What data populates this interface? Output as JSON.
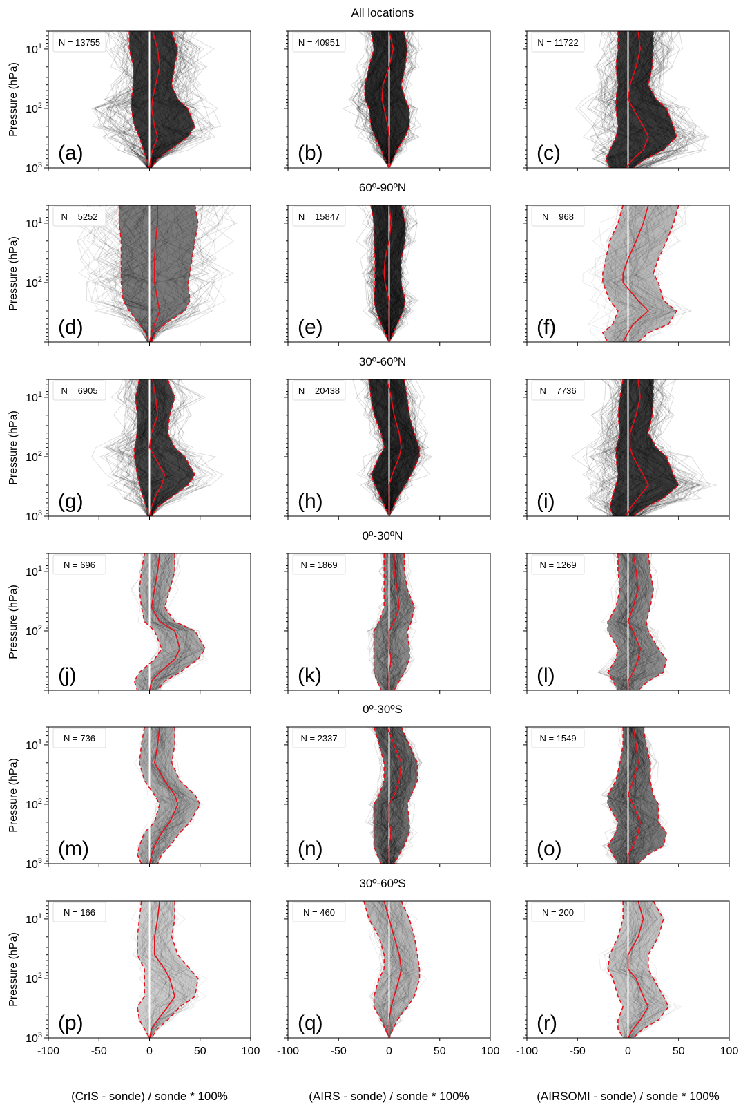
{
  "figure": {
    "ylabel": "Pressure (hPa)",
    "xlabels": [
      "(CrIS - sonde) / sonde * 100%",
      "(AIRS - sonde) / sonde * 100%",
      "(AIRSOMI - sonde) / sonde * 100%"
    ],
    "x_ticks": [
      -100,
      -50,
      0,
      50,
      100
    ],
    "y_tick_labels": [
      {
        "base": "10",
        "exp": "1",
        "value": 10
      },
      {
        "base": "10",
        "exp": "2",
        "value": 100
      },
      {
        "base": "10",
        "exp": "3",
        "value": 1000
      }
    ],
    "row_titles": [
      "All locations",
      "60º-90ºN",
      "30º-60ºN",
      "0º-30ºN",
      "0º-30ºS",
      "30º-60ºS"
    ],
    "colors": {
      "profiles": "#000000",
      "median": "#e8101a",
      "zero_line": "#ffffff",
      "frame": "#000000"
    }
  },
  "chart_data": [
    {
      "type": "line",
      "panel": "a",
      "n_label": "N = 13755",
      "xlim": [
        -100,
        100
      ],
      "ylim": [
        1000,
        5
      ],
      "yscale": "log",
      "density": 0.95,
      "spread": "wide",
      "p": [
        5,
        10,
        20,
        40,
        70,
        100,
        200,
        300,
        500,
        700,
        1000
      ],
      "median": [
        3,
        8,
        10,
        6,
        3,
        2,
        5,
        8,
        3,
        1,
        0
      ],
      "lower": [
        -20,
        -20,
        -16,
        -16,
        -18,
        -18,
        -15,
        -10,
        -6,
        -3,
        0
      ],
      "upper": [
        22,
        28,
        25,
        22,
        28,
        38,
        45,
        38,
        20,
        8,
        2
      ]
    },
    {
      "type": "line",
      "panel": "b",
      "n_label": "N = 40951",
      "xlim": [
        -100,
        100
      ],
      "ylim": [
        1000,
        5
      ],
      "yscale": "log",
      "density": 1.0,
      "spread": "medium",
      "p": [
        5,
        10,
        20,
        40,
        70,
        100,
        200,
        300,
        500,
        700,
        1000
      ],
      "median": [
        0,
        4,
        0,
        -6,
        -7,
        -5,
        -1,
        0,
        0,
        0,
        0
      ],
      "lower": [
        -18,
        -15,
        -20,
        -24,
        -24,
        -20,
        -18,
        -14,
        -8,
        -4,
        0
      ],
      "upper": [
        15,
        18,
        16,
        12,
        16,
        20,
        20,
        16,
        8,
        4,
        0
      ]
    },
    {
      "type": "line",
      "panel": "c",
      "n_label": "N = 11722",
      "xlim": [
        -100,
        100
      ],
      "ylim": [
        1000,
        5
      ],
      "yscale": "log",
      "density": 0.95,
      "spread": "wide",
      "p": [
        5,
        10,
        20,
        40,
        70,
        100,
        200,
        300,
        500,
        700,
        1000
      ],
      "median": [
        10,
        12,
        8,
        2,
        0,
        5,
        15,
        20,
        15,
        5,
        -2
      ],
      "lower": [
        -10,
        -10,
        -12,
        -10,
        -12,
        -12,
        -10,
        -12,
        -18,
        -22,
        -18
      ],
      "upper": [
        25,
        25,
        24,
        20,
        28,
        38,
        45,
        48,
        35,
        18,
        5
      ]
    },
    {
      "type": "line",
      "panel": "d",
      "n_label": "N = 5252",
      "xlim": [
        -100,
        100
      ],
      "ylim": [
        1000,
        5
      ],
      "yscale": "log",
      "density": 0.65,
      "spread": "wide",
      "p": [
        5,
        10,
        20,
        40,
        70,
        100,
        200,
        300,
        500,
        700,
        1000
      ],
      "median": [
        8,
        8,
        6,
        5,
        5,
        5,
        8,
        10,
        5,
        2,
        0
      ],
      "lower": [
        -30,
        -30,
        -28,
        -28,
        -28,
        -28,
        -26,
        -20,
        -10,
        -4,
        0
      ],
      "upper": [
        45,
        48,
        45,
        42,
        40,
        38,
        40,
        35,
        15,
        6,
        2
      ]
    },
    {
      "type": "line",
      "panel": "e",
      "n_label": "N = 15847",
      "xlim": [
        -100,
        100
      ],
      "ylim": [
        1000,
        5
      ],
      "yscale": "log",
      "density": 1.0,
      "spread": "medium",
      "p": [
        5,
        10,
        20,
        40,
        70,
        100,
        200,
        300,
        500,
        700,
        1000
      ],
      "median": [
        0,
        2,
        0,
        -4,
        -5,
        -4,
        0,
        0,
        0,
        0,
        0
      ],
      "lower": [
        -18,
        -15,
        -15,
        -14,
        -14,
        -14,
        -15,
        -13,
        -8,
        -4,
        0
      ],
      "upper": [
        12,
        16,
        16,
        12,
        12,
        12,
        16,
        14,
        8,
        4,
        0
      ]
    },
    {
      "type": "line",
      "panel": "f",
      "n_label": "N = 968",
      "xlim": [
        -100,
        100
      ],
      "ylim": [
        1000,
        5
      ],
      "yscale": "log",
      "density": 0.35,
      "spread": "medium",
      "p": [
        5,
        10,
        20,
        40,
        70,
        100,
        200,
        300,
        500,
        700,
        1000
      ],
      "median": [
        20,
        15,
        8,
        0,
        -5,
        -5,
        10,
        20,
        5,
        0,
        -5
      ],
      "lower": [
        -5,
        -10,
        -18,
        -22,
        -25,
        -25,
        -18,
        -10,
        -15,
        -25,
        -20
      ],
      "upper": [
        50,
        45,
        38,
        30,
        25,
        30,
        35,
        48,
        40,
        20,
        10
      ]
    },
    {
      "type": "line",
      "panel": "g",
      "n_label": "N = 6905",
      "xlim": [
        -100,
        100
      ],
      "ylim": [
        1000,
        5
      ],
      "yscale": "log",
      "density": 0.9,
      "spread": "wide",
      "p": [
        5,
        10,
        20,
        40,
        70,
        100,
        200,
        300,
        500,
        700,
        1000
      ],
      "median": [
        3,
        6,
        8,
        2,
        0,
        5,
        15,
        12,
        5,
        2,
        0
      ],
      "lower": [
        -10,
        -14,
        -12,
        -12,
        -15,
        -15,
        -12,
        -10,
        -6,
        -3,
        0
      ],
      "upper": [
        18,
        25,
        20,
        18,
        25,
        35,
        45,
        38,
        20,
        8,
        2
      ]
    },
    {
      "type": "line",
      "panel": "h",
      "n_label": "N = 20438",
      "xlim": [
        -100,
        100
      ],
      "ylim": [
        1000,
        5
      ],
      "yscale": "log",
      "density": 1.0,
      "spread": "medium",
      "p": [
        5,
        10,
        20,
        40,
        70,
        100,
        200,
        300,
        500,
        700,
        1000
      ],
      "median": [
        -2,
        2,
        5,
        10,
        12,
        10,
        3,
        0,
        0,
        0,
        0
      ],
      "lower": [
        -20,
        -18,
        -15,
        -8,
        -5,
        -10,
        -18,
        -14,
        -8,
        -4,
        0
      ],
      "upper": [
        15,
        18,
        20,
        25,
        30,
        30,
        22,
        16,
        8,
        4,
        0
      ]
    },
    {
      "type": "line",
      "panel": "i",
      "n_label": "N = 7736",
      "xlim": [
        -100,
        100
      ],
      "ylim": [
        1000,
        5
      ],
      "yscale": "log",
      "density": 0.95,
      "spread": "wide",
      "p": [
        5,
        10,
        20,
        40,
        70,
        100,
        200,
        300,
        500,
        700,
        1000
      ],
      "median": [
        10,
        12,
        8,
        2,
        2,
        5,
        15,
        20,
        10,
        3,
        -2
      ],
      "lower": [
        -5,
        -8,
        -10,
        -8,
        -12,
        -12,
        -10,
        -12,
        -16,
        -18,
        -15
      ],
      "upper": [
        25,
        25,
        24,
        20,
        28,
        38,
        45,
        50,
        35,
        18,
        5
      ]
    },
    {
      "type": "line",
      "panel": "j",
      "n_label": "N = 696",
      "xlim": [
        -100,
        100
      ],
      "ylim": [
        1000,
        5
      ],
      "yscale": "log",
      "density": 0.4,
      "spread": "narrow",
      "p": [
        5,
        10,
        20,
        40,
        70,
        100,
        200,
        300,
        500,
        700,
        1000
      ],
      "median": [
        10,
        8,
        5,
        2,
        10,
        25,
        30,
        25,
        10,
        2,
        0
      ],
      "lower": [
        -5,
        -8,
        -10,
        -8,
        -5,
        5,
        12,
        5,
        -10,
        -15,
        -12
      ],
      "upper": [
        25,
        25,
        20,
        15,
        25,
        45,
        55,
        48,
        30,
        15,
        8
      ]
    },
    {
      "type": "line",
      "panel": "k",
      "n_label": "N = 1869",
      "xlim": [
        -100,
        100
      ],
      "ylim": [
        1000,
        5
      ],
      "yscale": "log",
      "density": 0.55,
      "spread": "narrow",
      "p": [
        5,
        10,
        20,
        40,
        70,
        100,
        200,
        300,
        500,
        700,
        1000
      ],
      "median": [
        5,
        5,
        8,
        10,
        5,
        0,
        0,
        2,
        0,
        0,
        0
      ],
      "lower": [
        -5,
        -5,
        -5,
        -5,
        -10,
        -15,
        -15,
        -15,
        -15,
        -12,
        -8
      ],
      "upper": [
        15,
        15,
        18,
        25,
        22,
        18,
        20,
        20,
        15,
        10,
        5
      ]
    },
    {
      "type": "line",
      "panel": "l",
      "n_label": "N = 1269",
      "xlim": [
        -100,
        100
      ],
      "ylim": [
        1000,
        5
      ],
      "yscale": "log",
      "density": 0.55,
      "spread": "narrow",
      "p": [
        5,
        10,
        20,
        40,
        70,
        100,
        200,
        300,
        500,
        700,
        1000
      ],
      "median": [
        5,
        8,
        10,
        5,
        0,
        5,
        12,
        10,
        5,
        0,
        0
      ],
      "lower": [
        -10,
        -10,
        -8,
        -12,
        -20,
        -20,
        -10,
        -12,
        -20,
        -15,
        -10
      ],
      "upper": [
        20,
        22,
        25,
        22,
        18,
        20,
        30,
        38,
        35,
        20,
        10
      ]
    },
    {
      "type": "line",
      "panel": "m",
      "n_label": "N = 736",
      "xlim": [
        -100,
        100
      ],
      "ylim": [
        1000,
        5
      ],
      "yscale": "log",
      "density": 0.4,
      "spread": "narrow",
      "p": [
        5,
        10,
        20,
        40,
        70,
        100,
        200,
        300,
        500,
        700,
        1000
      ],
      "median": [
        10,
        8,
        5,
        15,
        25,
        28,
        20,
        12,
        5,
        2,
        0
      ],
      "lower": [
        -5,
        -8,
        -10,
        -5,
        5,
        10,
        5,
        -5,
        -10,
        -12,
        -8
      ],
      "upper": [
        25,
        25,
        22,
        30,
        45,
        50,
        40,
        30,
        20,
        12,
        8
      ]
    },
    {
      "type": "line",
      "panel": "n",
      "n_label": "N = 2337",
      "xlim": [
        -100,
        100
      ],
      "ylim": [
        1000,
        5
      ],
      "yscale": "log",
      "density": 0.7,
      "spread": "narrow",
      "p": [
        5,
        10,
        20,
        40,
        70,
        100,
        200,
        300,
        500,
        700,
        1000
      ],
      "median": [
        -2,
        5,
        12,
        10,
        5,
        0,
        0,
        2,
        0,
        0,
        0
      ],
      "lower": [
        -15,
        -10,
        -5,
        -5,
        -10,
        -15,
        -15,
        -15,
        -15,
        -12,
        -8
      ],
      "upper": [
        12,
        20,
        28,
        28,
        22,
        18,
        20,
        20,
        15,
        10,
        5
      ]
    },
    {
      "type": "line",
      "panel": "o",
      "n_label": "N = 1549",
      "xlim": [
        -100,
        100
      ],
      "ylim": [
        1000,
        5
      ],
      "yscale": "log",
      "density": 0.65,
      "spread": "narrow",
      "p": [
        5,
        10,
        20,
        40,
        70,
        100,
        200,
        300,
        500,
        700,
        1000
      ],
      "median": [
        5,
        8,
        10,
        5,
        0,
        5,
        12,
        10,
        5,
        0,
        0
      ],
      "lower": [
        -5,
        -5,
        -8,
        -12,
        -20,
        -20,
        -10,
        -12,
        -20,
        -15,
        -10
      ],
      "upper": [
        15,
        18,
        22,
        22,
        25,
        30,
        30,
        38,
        35,
        20,
        10
      ]
    },
    {
      "type": "line",
      "panel": "p",
      "n_label": "N = 166",
      "xlim": [
        -100,
        100
      ],
      "ylim": [
        1000,
        5
      ],
      "yscale": "log",
      "density": 0.25,
      "spread": "narrow",
      "p": [
        5,
        10,
        20,
        40,
        70,
        100,
        200,
        300,
        500,
        700,
        1000
      ],
      "median": [
        10,
        8,
        5,
        5,
        15,
        20,
        25,
        18,
        8,
        2,
        0
      ],
      "lower": [
        -8,
        -10,
        -12,
        -12,
        -5,
        -5,
        -5,
        -12,
        -10,
        -5,
        0
      ],
      "upper": [
        25,
        25,
        22,
        28,
        40,
        48,
        45,
        30,
        18,
        8,
        2
      ]
    },
    {
      "type": "line",
      "panel": "q",
      "n_label": "N = 460",
      "xlim": [
        -100,
        100
      ],
      "ylim": [
        1000,
        5
      ],
      "yscale": "log",
      "density": 0.35,
      "spread": "narrow",
      "p": [
        5,
        10,
        20,
        40,
        70,
        100,
        200,
        300,
        500,
        700,
        1000
      ],
      "median": [
        -5,
        0,
        5,
        10,
        12,
        10,
        5,
        2,
        0,
        0,
        0
      ],
      "lower": [
        -25,
        -20,
        -10,
        -5,
        -5,
        -10,
        -15,
        -15,
        -8,
        -4,
        0
      ],
      "upper": [
        12,
        20,
        25,
        28,
        30,
        30,
        25,
        18,
        8,
        4,
        0
      ]
    },
    {
      "type": "line",
      "panel": "r",
      "n_label": "N = 200",
      "xlim": [
        -100,
        100
      ],
      "ylim": [
        1000,
        5
      ],
      "yscale": "log",
      "density": 0.3,
      "spread": "narrow",
      "p": [
        5,
        10,
        20,
        40,
        70,
        100,
        200,
        300,
        500,
        700,
        1000
      ],
      "median": [
        10,
        15,
        10,
        0,
        0,
        8,
        15,
        20,
        12,
        5,
        0
      ],
      "lower": [
        -5,
        -5,
        -10,
        -18,
        -20,
        -15,
        -10,
        -5,
        -10,
        -10,
        -5
      ],
      "upper": [
        25,
        35,
        30,
        20,
        20,
        25,
        35,
        40,
        30,
        15,
        5
      ]
    }
  ]
}
